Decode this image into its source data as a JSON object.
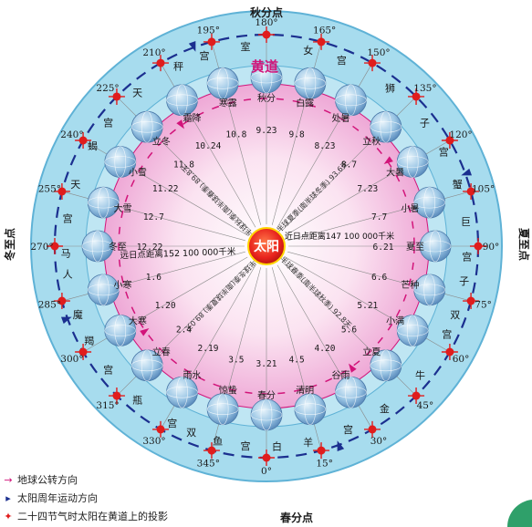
{
  "sun_label": "太阳",
  "ecliptic_title": "黄道",
  "directions": {
    "top": "秋分点",
    "bottom": "春分点",
    "left": "冬至点",
    "right": "夏至点"
  },
  "degrees": [
    "0°",
    "15°",
    "30°",
    "45°",
    "60°",
    "75°",
    "90°",
    "105°",
    "120°",
    "135°",
    "150°",
    "165°",
    "180°",
    "195°",
    "210°",
    "225°",
    "240°",
    "255°",
    "270°",
    "285°",
    "300°",
    "315°",
    "330°",
    "345°"
  ],
  "zodiac_chars": [
    {
      "angle": 3,
      "text": "白"
    },
    {
      "angle": 12,
      "text": "羊"
    },
    {
      "angle": 24,
      "text": "宫"
    },
    {
      "angle": 36,
      "text": "金"
    },
    {
      "angle": 50,
      "text": "牛"
    },
    {
      "angle": 64,
      "text": "宫"
    },
    {
      "angle": 70,
      "text": "双"
    },
    {
      "angle": 80,
      "text": "子"
    },
    {
      "angle": 87,
      "text": "宫"
    },
    {
      "angle": 97,
      "text": "巨"
    },
    {
      "angle": 108,
      "text": "蟹"
    },
    {
      "angle": 118,
      "text": "宫"
    },
    {
      "angle": 128,
      "text": "子"
    },
    {
      "angle": 142,
      "text": "狮"
    },
    {
      "angle": 158,
      "text": "宫"
    },
    {
      "angle": 168,
      "text": "女"
    },
    {
      "angle": 186,
      "text": "室"
    },
    {
      "angle": 198,
      "text": "宫"
    },
    {
      "angle": 206,
      "text": "秤"
    },
    {
      "angle": 220,
      "text": "天"
    },
    {
      "angle": 232,
      "text": "宫"
    },
    {
      "angle": 240,
      "text": "蝎"
    },
    {
      "angle": 252,
      "text": "天"
    },
    {
      "angle": 262,
      "text": "宫"
    },
    {
      "angle": 272,
      "text": "马"
    },
    {
      "angle": 278,
      "text": "人"
    },
    {
      "angle": 290,
      "text": "魔"
    },
    {
      "angle": 298,
      "text": "羯"
    },
    {
      "angle": 308,
      "text": "宫"
    },
    {
      "angle": 320,
      "text": "瓶"
    },
    {
      "angle": 332,
      "text": "宫"
    },
    {
      "angle": 338,
      "text": "双"
    },
    {
      "angle": 346,
      "text": "鱼"
    },
    {
      "angle": 354,
      "text": "宫"
    }
  ],
  "solar_terms": [
    {
      "name": "春分",
      "date": "3.21",
      "angle": 0
    },
    {
      "name": "清明",
      "date": "4.5",
      "angle": 15
    },
    {
      "name": "谷雨",
      "date": "4.20",
      "angle": 30
    },
    {
      "name": "立夏",
      "date": "5.6",
      "angle": 45
    },
    {
      "name": "小满",
      "date": "5.21",
      "angle": 60
    },
    {
      "name": "芒种",
      "date": "6.6",
      "angle": 75
    },
    {
      "name": "夏至",
      "date": "6.21",
      "angle": 90
    },
    {
      "name": "小暑",
      "date": "7.7",
      "angle": 105
    },
    {
      "name": "大暑",
      "date": "7.23",
      "angle": 120
    },
    {
      "name": "立秋",
      "date": "8.7",
      "angle": 135
    },
    {
      "name": "处暑",
      "date": "8.23",
      "angle": 150
    },
    {
      "name": "白露",
      "date": "9.8",
      "angle": 165
    },
    {
      "name": "秋分",
      "date": "9.23",
      "angle": 180
    },
    {
      "name": "寒露",
      "date": "10.8",
      "angle": 195
    },
    {
      "name": "霜降",
      "date": "10.24",
      "angle": 210
    },
    {
      "name": "立冬",
      "date": "11.8",
      "angle": 225
    },
    {
      "name": "小雪",
      "date": "11.22",
      "angle": 240
    },
    {
      "name": "大雪",
      "date": "12.7",
      "angle": 255
    },
    {
      "name": "冬至",
      "date": "12.22",
      "angle": 270
    },
    {
      "name": "小寒",
      "date": "1.6",
      "angle": 285
    },
    {
      "name": "大寒",
      "date": "1.20",
      "angle": 300
    },
    {
      "name": "立春",
      "date": "2.4",
      "angle": 315
    },
    {
      "name": "雨水",
      "date": "2.19",
      "angle": 330
    },
    {
      "name": "惊蛰",
      "date": "3.5",
      "angle": 345
    }
  ],
  "distances": {
    "perihelion": "近日点距离147 100 000千米",
    "aphelion": "远日点距离152 100 000千米"
  },
  "season_arcs": [
    {
      "text": "北半球春季(南半球秋季) 92.8天",
      "angle": 45
    },
    {
      "text": "北半球夏季(南半球冬季) 93.6天",
      "angle": 135
    },
    {
      "text": "北半球秋季(南半球春季) 89.8天",
      "angle": 225
    },
    {
      "text": "北半球冬季(南半球夏季) 89.0天",
      "angle": 315
    }
  ],
  "legend": {
    "earth_direction": "地球公转方向",
    "sun_direction": "太阳周年运动方向",
    "projection": "二十四节气时太阳在黄道上的投影"
  },
  "colors": {
    "outer_ring": "#9fd6ea",
    "inner_disk": "#f6c9e5",
    "sun": "#e8231d",
    "marker": "#e01d1d",
    "arrow": "#1b2f8f",
    "orbit": "#d2147a",
    "text_dark": "#1a1a1a",
    "text_orange": "#d64a1a"
  }
}
